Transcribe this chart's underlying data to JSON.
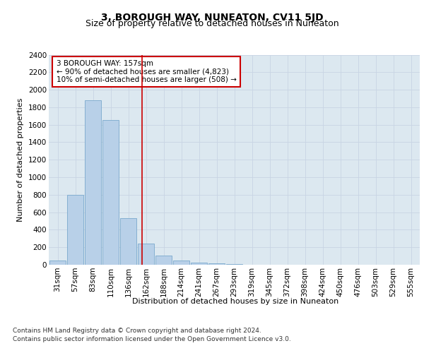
{
  "title": "3, BOROUGH WAY, NUNEATON, CV11 5JD",
  "subtitle": "Size of property relative to detached houses in Nuneaton",
  "xlabel": "Distribution of detached houses by size in Nuneaton",
  "ylabel": "Number of detached properties",
  "categories": [
    "31sqm",
    "57sqm",
    "83sqm",
    "110sqm",
    "136sqm",
    "162sqm",
    "188sqm",
    "214sqm",
    "241sqm",
    "267sqm",
    "293sqm",
    "319sqm",
    "345sqm",
    "372sqm",
    "398sqm",
    "424sqm",
    "450sqm",
    "476sqm",
    "503sqm",
    "529sqm",
    "555sqm"
  ],
  "values": [
    50,
    800,
    1880,
    1650,
    530,
    240,
    105,
    50,
    28,
    14,
    10,
    0,
    0,
    0,
    0,
    0,
    0,
    0,
    0,
    0,
    0
  ],
  "bar_color": "#b8d0e8",
  "bar_edge_color": "#7aa8cc",
  "vline_x": 4.77,
  "vline_color": "#cc0000",
  "annotation_text": "3 BOROUGH WAY: 157sqm\n← 90% of detached houses are smaller (4,823)\n10% of semi-detached houses are larger (508) →",
  "annotation_box_color": "white",
  "annotation_box_edge_color": "#cc0000",
  "ylim": [
    0,
    2400
  ],
  "yticks": [
    0,
    200,
    400,
    600,
    800,
    1000,
    1200,
    1400,
    1600,
    1800,
    2000,
    2200,
    2400
  ],
  "grid_color": "#c8d4e4",
  "background_color": "#dce8f0",
  "footer_line1": "Contains HM Land Registry data © Crown copyright and database right 2024.",
  "footer_line2": "Contains public sector information licensed under the Open Government Licence v3.0.",
  "title_fontsize": 10,
  "subtitle_fontsize": 9,
  "axis_label_fontsize": 8,
  "tick_fontsize": 7.5,
  "annotation_fontsize": 7.5,
  "footer_fontsize": 6.5
}
